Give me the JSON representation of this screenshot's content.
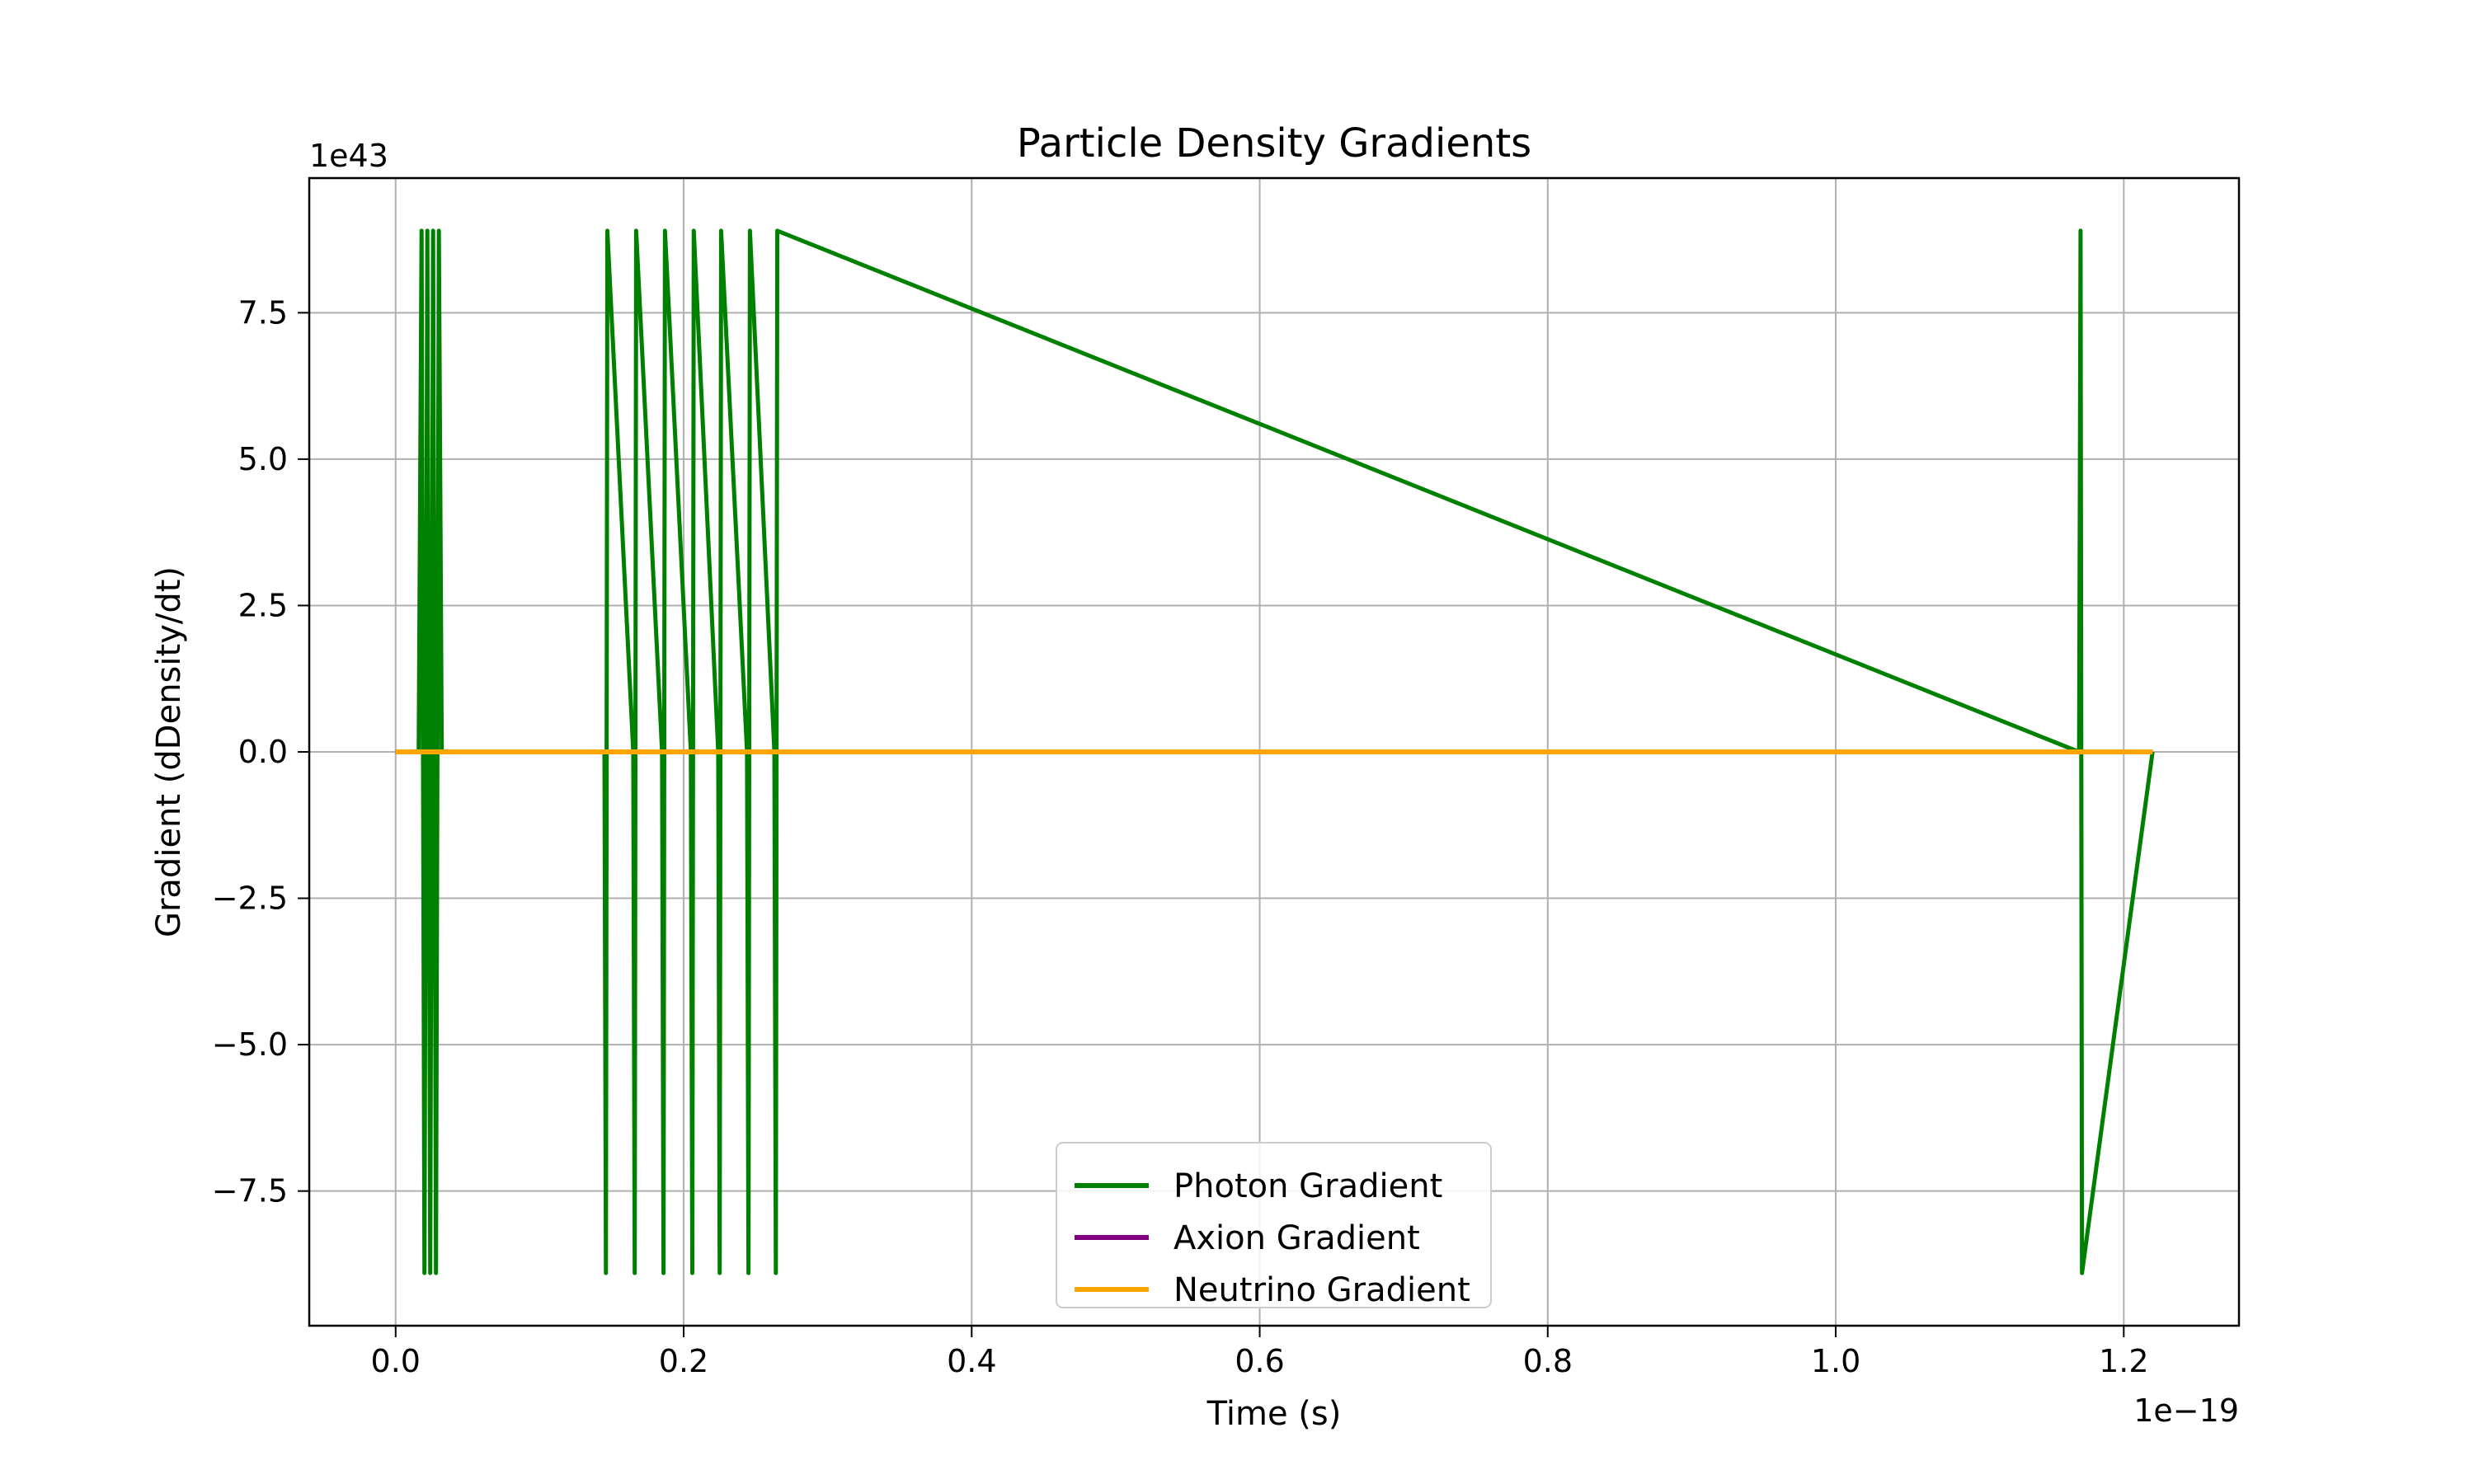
{
  "chart_data": {
    "type": "line",
    "title": "Particle Density Gradients",
    "xlabel": "Time (s)",
    "ylabel": "Gradient (dDensity/dt)",
    "x_offset_label": "1e−19",
    "y_offset_label": "1e43",
    "xlim": [
      -0.06,
      1.28
    ],
    "ylim": [
      -9.8,
      9.8
    ],
    "x_scale_note": "values in units of 1e-19 s",
    "y_scale_note": "values in units of 1e43",
    "xticks": [
      0.0,
      0.2,
      0.4,
      0.6,
      0.8,
      1.0,
      1.2
    ],
    "xtick_labels": [
      "0.0",
      "0.2",
      "0.4",
      "0.6",
      "0.8",
      "1.0",
      "1.2"
    ],
    "yticks": [
      -7.5,
      -5.0,
      -2.5,
      0.0,
      2.5,
      5.0,
      7.5
    ],
    "ytick_labels": [
      "−7.5",
      "−5.0",
      "−2.5",
      "0.0",
      "2.5",
      "5.0",
      "7.5"
    ],
    "grid": true,
    "legend_position": "lower center",
    "series": [
      {
        "name": "Photon Gradient",
        "color": "#008000",
        "x": [
          0.0,
          0.016,
          0.018,
          0.02,
          0.022,
          0.024,
          0.026,
          0.028,
          0.03,
          0.032,
          0.034,
          0.036,
          0.145,
          0.146,
          0.147,
          0.165,
          0.166,
          0.167,
          0.185,
          0.186,
          0.187,
          0.205,
          0.206,
          0.207,
          0.224,
          0.225,
          0.226,
          0.244,
          0.245,
          0.246,
          0.263,
          0.264,
          0.265,
          1.169,
          1.17,
          1.171,
          1.22
        ],
        "y": [
          0.0,
          0.0,
          8.9,
          -8.9,
          8.9,
          -8.9,
          8.9,
          -8.9,
          8.9,
          0.0,
          0.0,
          0.0,
          0.0,
          -8.9,
          8.9,
          0.0,
          -8.9,
          8.9,
          0.0,
          -8.9,
          8.9,
          0.0,
          -8.9,
          8.9,
          0.0,
          -8.9,
          8.9,
          0.0,
          -8.9,
          8.9,
          0.0,
          -8.9,
          8.9,
          0.0,
          8.9,
          -8.9,
          0.0
        ]
      },
      {
        "name": "Axion Gradient",
        "color": "#800080",
        "x": [
          0.0,
          1.22
        ],
        "y": [
          0.0,
          0.0
        ]
      },
      {
        "name": "Neutrino Gradient",
        "color": "#FFA500",
        "x": [
          0.0,
          1.22
        ],
        "y": [
          0.0,
          0.0
        ]
      }
    ]
  }
}
